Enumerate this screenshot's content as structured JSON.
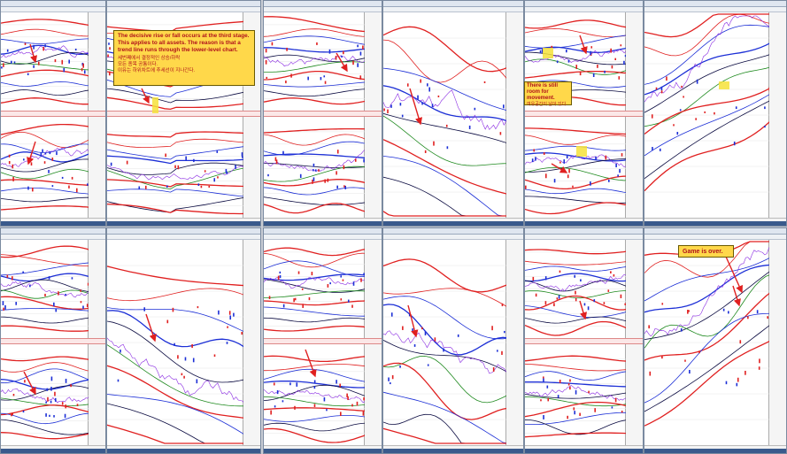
{
  "annotations": {
    "note1": {
      "en": "The decisive rise or fall occurs at the third stage. This applies to all assets. The reason is that a trend line runs through the lower-level chart.",
      "ko1": "세번째에서 결정적인 상승/하락",
      "ko2": "모든 종목 공통이다.",
      "ko3": "이유는 하위차트에 추세선이 지나간다."
    },
    "note2": {
      "en": "There is still room for movement.",
      "ko": "여유공간이 남아 있다."
    },
    "note3": {
      "en": "Game is over."
    }
  },
  "colors": {
    "red": "#e02020",
    "blue": "#1c2fd6",
    "navy": "#0a0a40",
    "green": "#1f8a1f",
    "note_bg": "#ffd84a",
    "note_text": "#b0121b",
    "highlight": "#f6e23a"
  },
  "icons": [
    "arrow-annotation-icon"
  ]
}
